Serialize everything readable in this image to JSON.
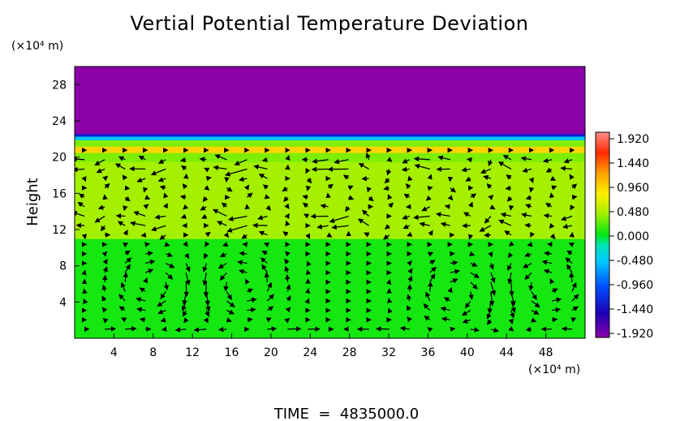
{
  "chart_data": {
    "type": "heatmap",
    "title": "Vertial Potential Temperature Deviation",
    "ylabel": "Height",
    "xunit_label": "(×10⁴ m)",
    "yunit_label": "(×10⁴ m)",
    "footer": "TIME  =  4835000.0",
    "xlim": [
      0,
      52
    ],
    "ylim": [
      0,
      30
    ],
    "x_ticks": [
      4,
      8,
      12,
      16,
      20,
      24,
      28,
      32,
      36,
      40,
      44,
      48
    ],
    "y_ticks": [
      4,
      8,
      12,
      16,
      20,
      24,
      28
    ],
    "colorbar": {
      "min": -1.92,
      "max": 1.92,
      "ticks": [
        "1.920",
        "1.440",
        "0.960",
        "0.480",
        "0.000",
        "-0.480",
        "-0.960",
        "-1.440",
        "-1.920"
      ]
    },
    "field_bands": [
      {
        "y0": 0,
        "y1": 11,
        "value": 0.05
      },
      {
        "y0": 11,
        "y1": 19.5,
        "value": 0.4
      },
      {
        "y0": 19.5,
        "y1": 20.5,
        "value": 0.3
      },
      {
        "y0": 20.5,
        "y1": 21.2,
        "value": 0.9
      },
      {
        "y0": 21.2,
        "y1": 21.9,
        "value": 0.3
      },
      {
        "y0": 21.9,
        "y1": 22.3,
        "value": -0.5
      },
      {
        "y0": 22.3,
        "y1": 22.6,
        "value": -1.3
      },
      {
        "y0": 22.6,
        "y1": 30,
        "value": -1.92
      }
    ],
    "vectors": {
      "x_start": 1,
      "x_step": 2.07,
      "x_count": 25,
      "y_start": 1,
      "y_step": 1.04,
      "y_count": 20,
      "features": [
        {
          "type": "vortex",
          "x": 8,
          "y": 6,
          "sense": -1
        },
        {
          "type": "vortex",
          "x": 17,
          "y": 6,
          "sense": 1
        },
        {
          "type": "vortex",
          "x": 39,
          "y": 5,
          "sense": -1
        },
        {
          "type": "vortex",
          "x": 48,
          "y": 6,
          "sense": 1
        },
        {
          "type": "jet",
          "y": 13,
          "direction": -1
        },
        {
          "type": "jet",
          "y": 19,
          "direction": -1
        }
      ]
    }
  }
}
